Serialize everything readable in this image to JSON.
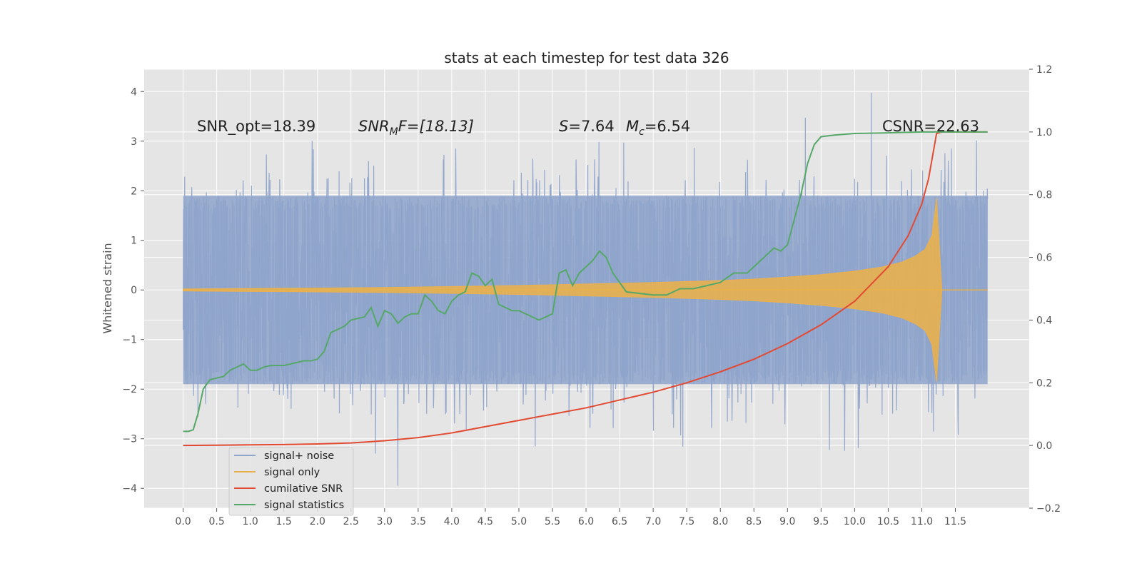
{
  "chart_data": {
    "type": "line",
    "title": "stats at each timestep for test data 326",
    "ylabel": "Whitened strain",
    "xlabel": "",
    "xlim": [
      -0.58,
      12.6
    ],
    "ylim": [
      -4.4,
      4.45
    ],
    "ylim_right": [
      -0.2,
      1.2
    ],
    "x_ticks": [
      0.0,
      0.5,
      1.0,
      1.5,
      2.0,
      2.5,
      3.0,
      3.5,
      4.0,
      4.5,
      5.0,
      5.5,
      6.0,
      6.5,
      7.0,
      7.5,
      8.0,
      8.5,
      9.0,
      9.5,
      10.0,
      10.5,
      11.0,
      11.5
    ],
    "x_tick_labels": [
      "0.0",
      "0.5",
      "1.0",
      "1.5",
      "2.0",
      "2.5",
      "3.0",
      "3.5",
      "4.0",
      "4.5",
      "5.0",
      "5.5",
      "6.0",
      "6.5",
      "7.0",
      "7.5",
      "8.0",
      "8.5",
      "9.0",
      "9.5",
      "10.0",
      "10.5",
      "11.0",
      "11.5"
    ],
    "y_ticks": [
      4,
      3,
      2,
      1,
      0,
      -1,
      -2,
      -3,
      -4
    ],
    "y_tick_labels": [
      "4",
      "3",
      "2",
      "1",
      "0",
      "−1",
      "−2",
      "−3",
      "−4"
    ],
    "y_right_ticks": [
      1.2,
      1.0,
      0.8,
      0.6,
      0.4,
      0.2,
      0.0,
      -0.2
    ],
    "y_right_tick_labels": [
      "1.2",
      "1.0",
      "0.8",
      "0.6",
      "0.4",
      "0.2",
      "0.0",
      "−0.2"
    ],
    "grid": true,
    "legend_position": "lower-left",
    "series": [
      {
        "name": "signal+ noise",
        "color": "#8fa4cb",
        "axis": "left",
        "kind": "noisy-band",
        "x_range": [
          0.0,
          11.98
        ],
        "core_envelope": [
          -1.9,
          1.9
        ],
        "min_value": -3.95,
        "max_value": 4.1
      },
      {
        "name": "signal only",
        "color": "#e9b04e",
        "axis": "left",
        "kind": "chirp-envelope",
        "x": [
          0.0,
          1.0,
          2.0,
          3.0,
          4.0,
          5.0,
          6.0,
          7.0,
          8.0,
          8.5,
          9.0,
          9.5,
          10.0,
          10.4,
          10.7,
          10.9,
          11.05,
          11.15,
          11.22,
          11.3,
          11.98
        ],
        "amplitude": [
          0.02,
          0.03,
          0.04,
          0.05,
          0.07,
          0.09,
          0.12,
          0.15,
          0.19,
          0.22,
          0.26,
          0.31,
          0.38,
          0.46,
          0.56,
          0.68,
          0.82,
          1.1,
          1.85,
          0.0,
          0.0
        ]
      },
      {
        "name": "cumilative SNR",
        "color": "#e24a33",
        "axis": "right",
        "x": [
          0.0,
          0.5,
          1.0,
          1.5,
          2.0,
          2.5,
          3.0,
          3.5,
          4.0,
          4.5,
          5.0,
          5.5,
          6.0,
          6.5,
          7.0,
          7.5,
          8.0,
          8.5,
          9.0,
          9.5,
          10.0,
          10.5,
          10.8,
          11.0,
          11.1,
          11.22,
          11.3,
          11.98
        ],
        "values": [
          0.0,
          0.001,
          0.002,
          0.003,
          0.005,
          0.008,
          0.015,
          0.025,
          0.04,
          0.06,
          0.08,
          0.1,
          0.12,
          0.145,
          0.17,
          0.2,
          0.235,
          0.275,
          0.325,
          0.385,
          0.46,
          0.57,
          0.67,
          0.77,
          0.85,
          0.995,
          1.0,
          1.0
        ]
      },
      {
        "name": "signal statistics",
        "color": "#55a868",
        "axis": "right",
        "x": [
          0.0,
          0.08,
          0.15,
          0.22,
          0.3,
          0.4,
          0.5,
          0.6,
          0.7,
          0.8,
          0.9,
          1.0,
          1.1,
          1.2,
          1.3,
          1.5,
          1.6,
          1.7,
          1.8,
          1.9,
          2.0,
          2.1,
          2.2,
          2.3,
          2.4,
          2.5,
          2.6,
          2.7,
          2.8,
          2.9,
          3.0,
          3.1,
          3.2,
          3.3,
          3.4,
          3.5,
          3.6,
          3.7,
          3.8,
          3.9,
          4.0,
          4.1,
          4.2,
          4.3,
          4.4,
          4.5,
          4.6,
          4.7,
          4.8,
          4.9,
          5.0,
          5.1,
          5.2,
          5.3,
          5.4,
          5.5,
          5.6,
          5.7,
          5.8,
          5.9,
          6.0,
          6.1,
          6.2,
          6.3,
          6.4,
          6.5,
          6.6,
          6.8,
          7.0,
          7.2,
          7.4,
          7.6,
          7.8,
          8.0,
          8.2,
          8.4,
          8.6,
          8.8,
          8.9,
          9.0,
          9.1,
          9.2,
          9.3,
          9.4,
          9.5,
          9.7,
          10.0,
          10.5,
          11.0,
          11.98
        ],
        "values": [
          0.045,
          0.045,
          0.05,
          0.1,
          0.18,
          0.21,
          0.215,
          0.22,
          0.24,
          0.25,
          0.26,
          0.24,
          0.24,
          0.25,
          0.255,
          0.255,
          0.26,
          0.265,
          0.27,
          0.27,
          0.275,
          0.3,
          0.36,
          0.37,
          0.38,
          0.4,
          0.405,
          0.41,
          0.44,
          0.38,
          0.43,
          0.42,
          0.39,
          0.41,
          0.42,
          0.42,
          0.48,
          0.46,
          0.43,
          0.42,
          0.46,
          0.48,
          0.49,
          0.55,
          0.54,
          0.51,
          0.53,
          0.45,
          0.44,
          0.43,
          0.43,
          0.42,
          0.41,
          0.4,
          0.41,
          0.42,
          0.55,
          0.56,
          0.51,
          0.55,
          0.57,
          0.59,
          0.62,
          0.6,
          0.55,
          0.52,
          0.49,
          0.485,
          0.48,
          0.48,
          0.5,
          0.5,
          0.51,
          0.52,
          0.55,
          0.55,
          0.59,
          0.63,
          0.62,
          0.64,
          0.72,
          0.8,
          0.9,
          0.96,
          0.985,
          0.99,
          0.995,
          0.997,
          1.0,
          1.0
        ]
      }
    ],
    "annotations": {
      "snr_opt": "SNR_opt=18.39",
      "snr_mf_prefix": "SNR",
      "snr_mf_sub": "M",
      "snr_mf_suffix": "F=[18.13]",
      "s_symbol": "S",
      "s_value": "=7.64",
      "mc_symbol": "M",
      "mc_sub": "c",
      "mc_value": "=6.54",
      "csnr": "CSNR=22.63"
    },
    "legend": [
      "signal+ noise",
      "signal only",
      "cumilative SNR",
      "signal statistics"
    ],
    "colors": {
      "plot_background": "#e5e5e5",
      "grid": "#ffffff",
      "noise": "#8fa4cb",
      "signal": "#e9b04e",
      "snr": "#e24a33",
      "stats": "#55a868"
    }
  }
}
